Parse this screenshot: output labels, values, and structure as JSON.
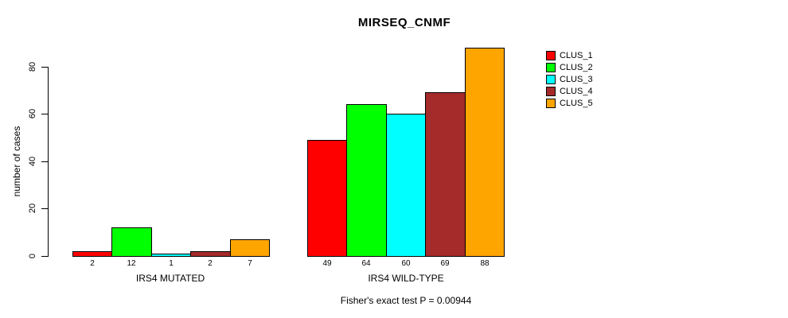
{
  "chart_data": {
    "type": "bar",
    "title": "MIRSEQ_CNMF",
    "ylabel": "number of cases",
    "xlabel": "",
    "ylim": [
      0,
      88
    ],
    "yticks": [
      0,
      20,
      40,
      60,
      80
    ],
    "grid": false,
    "legend_position": "top-right",
    "groups": [
      {
        "label": "IRS4 MUTATED",
        "values": [
          2,
          12,
          1,
          2,
          7
        ]
      },
      {
        "label": "IRS4 WILD-TYPE",
        "values": [
          49,
          64,
          60,
          69,
          88
        ]
      }
    ],
    "series": [
      {
        "name": "CLUS_1",
        "color": "#ff0000",
        "values": [
          2,
          49
        ]
      },
      {
        "name": "CLUS_2",
        "color": "#00ff00",
        "values": [
          12,
          64
        ]
      },
      {
        "name": "CLUS_3",
        "color": "#00ffff",
        "values": [
          1,
          60
        ]
      },
      {
        "name": "CLUS_4",
        "color": "#a52a2a",
        "values": [
          2,
          69
        ]
      },
      {
        "name": "CLUS_5",
        "color": "#ffa500",
        "values": [
          7,
          88
        ]
      }
    ],
    "annotation": "Fisher's exact test P = 0.00944"
  }
}
